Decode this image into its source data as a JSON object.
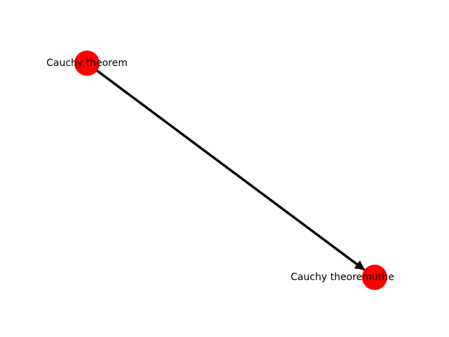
{
  "graph": {
    "nodes": [
      {
        "id": "source",
        "label": "Cauchy theorem",
        "color": "#ff0000"
      },
      {
        "id": "target",
        "label": "Cauchy theoremuthe",
        "color": "#ff0000"
      }
    ],
    "edges": [
      {
        "from": "source",
        "to": "target",
        "directed": true,
        "color": "#000000"
      }
    ]
  }
}
